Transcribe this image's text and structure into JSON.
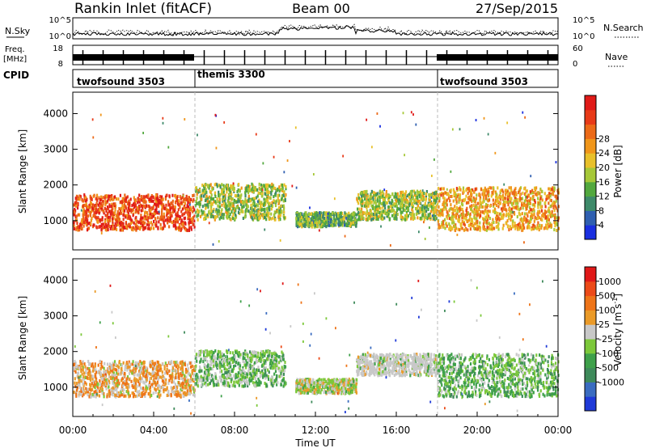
{
  "header": {
    "station": "Rankin Inlet (fitACF)",
    "beam": "Beam 00",
    "date": "27/Sep/2015"
  },
  "noise_panel": {
    "left_label": "N.Sky",
    "right_label": "N.Search",
    "left_ticks": [
      "10^5",
      "10^0"
    ],
    "right_ticks": [
      "10^5",
      "10^0"
    ]
  },
  "freq_panel": {
    "left_label_top": "Freq.",
    "left_label_unit": "[MHz]",
    "right_label": "Nave",
    "left_ticks": [
      "18",
      "8"
    ],
    "right_ticks": [
      "60",
      "0"
    ]
  },
  "cpid": {
    "label": "CPID",
    "programs": [
      {
        "name": "twofsound 3503",
        "start_hour": 0,
        "end_hour": 6
      },
      {
        "name": "themis 3300",
        "start_hour": 6,
        "end_hour": 18
      },
      {
        "name": "twofsound 3503",
        "start_hour": 18,
        "end_hour": 24
      }
    ]
  },
  "x_axis": {
    "title": "Time UT",
    "tick_labels": [
      "00:00",
      "04:00",
      "08:00",
      "12:00",
      "16:00",
      "20:00",
      "00:00"
    ],
    "range_hours": [
      0,
      24
    ]
  },
  "chart_data": [
    {
      "type": "heatmap",
      "title": "",
      "xlabel": "",
      "ylabel": "Slant Range [km]",
      "yticks": [
        "1000",
        "2000",
        "3000",
        "4000"
      ],
      "ylim": [
        180,
        4600
      ],
      "colorbar": {
        "label": "Power [dB]",
        "ticks": [
          "4",
          "8",
          "12",
          "16",
          "20",
          "24",
          "28"
        ],
        "colors": [
          "#1a2fe0",
          "#2f5fb0",
          "#3e8a6a",
          "#52a83e",
          "#a6c838",
          "#e8c02a",
          "#f0961a",
          "#ec6a18",
          "#e83a18",
          "#e01a18"
        ]
      },
      "regions": [
        {
          "t": [
            0.0,
            6.0
          ],
          "r": [
            700,
            1700
          ],
          "value_db": 26
        },
        {
          "t": [
            6.0,
            10.5
          ],
          "r": [
            1000,
            2000
          ],
          "value_db": 14
        },
        {
          "t": [
            11.0,
            14.0
          ],
          "r": [
            800,
            1200
          ],
          "value_db": 12
        },
        {
          "t": [
            14.0,
            18.0
          ],
          "r": [
            1000,
            1800
          ],
          "value_db": 14
        },
        {
          "t": [
            18.0,
            24.0
          ],
          "r": [
            700,
            1900
          ],
          "value_db": 20
        }
      ]
    },
    {
      "type": "heatmap",
      "title": "",
      "xlabel": "Time UT",
      "ylabel": "Slant Range [km]",
      "yticks": [
        "1000",
        "2000",
        "3000",
        "4000"
      ],
      "ylim": [
        180,
        4600
      ],
      "colorbar": {
        "label": "Velocity [m s^-1]",
        "ticks": [
          "1000",
          "500",
          "100",
          "25",
          "-25",
          "-100",
          "-500",
          "-1000"
        ],
        "colors": [
          "#1f3ad8",
          "#3a6cc0",
          "#3e8a5a",
          "#3ea04a",
          "#7cc83a",
          "#c8c8c8",
          "#ea9a28",
          "#ee7418",
          "#ec4a18",
          "#e01818"
        ]
      },
      "regions": [
        {
          "t": [
            0.0,
            6.0
          ],
          "r": [
            700,
            1700
          ],
          "velocity": 300
        },
        {
          "t": [
            6.0,
            10.5
          ],
          "r": [
            1000,
            2000
          ],
          "velocity": -150
        },
        {
          "t": [
            11.0,
            14.0
          ],
          "r": [
            800,
            1200
          ],
          "velocity": 50
        },
        {
          "t": [
            14.0,
            18.0
          ],
          "r": [
            1300,
            1900
          ],
          "velocity": 0
        },
        {
          "t": [
            18.0,
            24.0
          ],
          "r": [
            700,
            1900
          ],
          "velocity": -200
        }
      ]
    }
  ],
  "colors": {
    "marker_line": "#bbbbbb",
    "ground_scatter": "#c8c8c8"
  }
}
